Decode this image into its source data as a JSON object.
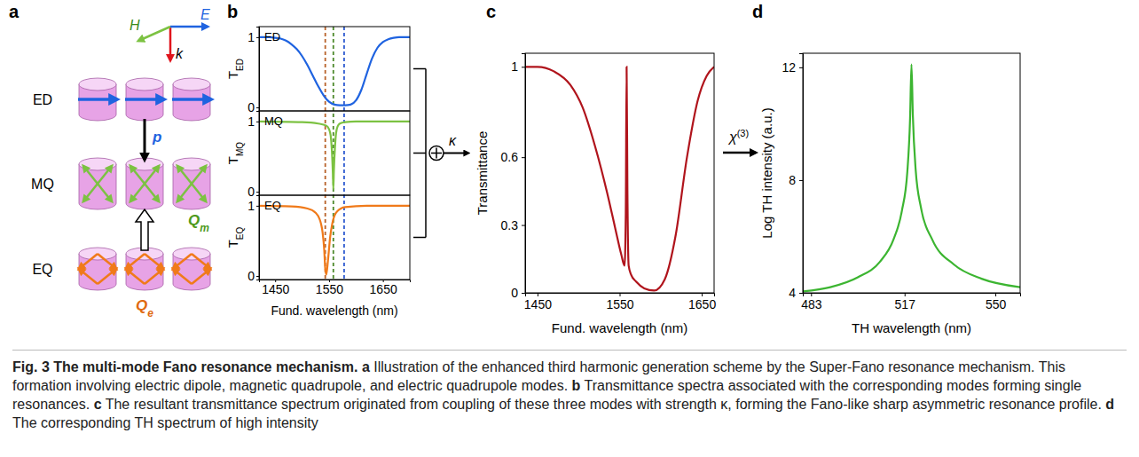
{
  "panel_labels": [
    "a",
    "b",
    "c",
    "d"
  ],
  "diagram": {
    "field_labels": [
      "H",
      "E",
      "k"
    ],
    "rows": [
      {
        "label": "ED",
        "moment": "p"
      },
      {
        "label": "MQ",
        "moment": "Q",
        "moment_sub": "m"
      },
      {
        "label": "EQ",
        "moment": "Q",
        "moment_sub": "e"
      }
    ]
  },
  "connectors": {
    "coupling": "κ",
    "process": {
      "symbol": "χ",
      "sup": "(3)"
    }
  },
  "chart_data": [
    {
      "type": "line",
      "xlabel": "Fund. wavelength (nm)",
      "xlim": [
        1420,
        1700
      ],
      "xticks": [
        1450,
        1550,
        1650
      ],
      "ylim": [
        -0.05,
        1.15
      ],
      "yticks": [
        0,
        1
      ],
      "reference_lines": [
        {
          "value": 1543,
          "color": "#b8622a"
        },
        {
          "value": 1558,
          "color": "#4e8a2c"
        },
        {
          "value": 1578,
          "color": "#2e5bd0"
        }
      ],
      "series": [
        {
          "name": "ED",
          "ylabel": "T",
          "ylabel_sub": "ED",
          "color": "#1f63e0",
          "x": [
            1420,
            1430,
            1440,
            1450,
            1460,
            1470,
            1480,
            1490,
            1500,
            1510,
            1520,
            1530,
            1540,
            1550,
            1560,
            1570,
            1580,
            1590,
            1600,
            1610,
            1620,
            1630,
            1640,
            1650,
            1660,
            1670,
            1680,
            1690,
            1700
          ],
          "values": [
            1,
            1,
            1,
            0.99,
            0.98,
            0.95,
            0.9,
            0.83,
            0.73,
            0.6,
            0.45,
            0.3,
            0.17,
            0.08,
            0.04,
            0.03,
            0.03,
            0.04,
            0.1,
            0.25,
            0.48,
            0.7,
            0.85,
            0.93,
            0.97,
            0.99,
            1,
            1,
            1
          ]
        },
        {
          "name": "MQ",
          "ylabel": "T",
          "ylabel_sub": "MQ",
          "color": "#7cc242",
          "x": [
            1420,
            1500,
            1530,
            1545,
            1550,
            1553,
            1555,
            1557,
            1558,
            1559,
            1561,
            1563,
            1566,
            1570,
            1580,
            1600,
            1650,
            1700
          ],
          "values": [
            1,
            0.99,
            0.97,
            0.94,
            0.89,
            0.8,
            0.62,
            0.28,
            0.04,
            0.3,
            0.63,
            0.83,
            0.93,
            0.97,
            0.99,
            1,
            1,
            1
          ]
        },
        {
          "name": "EQ",
          "ylabel": "T",
          "ylabel_sub": "EQ",
          "color": "#f07a1a",
          "x": [
            1420,
            1480,
            1510,
            1525,
            1533,
            1538,
            1541,
            1543,
            1545,
            1548,
            1552,
            1557,
            1565,
            1580,
            1620,
            1700
          ],
          "values": [
            1,
            0.99,
            0.96,
            0.9,
            0.8,
            0.62,
            0.38,
            0.1,
            0.02,
            0.22,
            0.55,
            0.78,
            0.92,
            0.98,
            1,
            1
          ]
        }
      ]
    },
    {
      "type": "line",
      "xlabel": "Fund. wavelength (nm)",
      "ylabel": "Transmittance",
      "xlim": [
        1435,
        1665
      ],
      "xticks": [
        1450,
        1550,
        1650
      ],
      "ylim": [
        0,
        1.06
      ],
      "yticks": [
        0,
        0.3,
        0.6,
        1
      ],
      "color": "#b0141c",
      "x": [
        1435,
        1450,
        1470,
        1490,
        1505,
        1520,
        1535,
        1545,
        1552,
        1556,
        1557.5,
        1558.5,
        1559.5,
        1561,
        1564,
        1570,
        1580,
        1592,
        1605,
        1618,
        1632,
        1645,
        1656,
        1665
      ],
      "values": [
        1,
        1,
        0.98,
        0.92,
        0.82,
        0.65,
        0.44,
        0.28,
        0.17,
        0.12,
        0.35,
        1,
        0.45,
        0.12,
        0.08,
        0.05,
        0.02,
        0.01,
        0.06,
        0.25,
        0.6,
        0.85,
        0.96,
        1
      ]
    },
    {
      "type": "line",
      "xlabel": "TH wavelength (nm)",
      "ylabel": "Log TH intensity (a.u.)",
      "xlim": [
        480,
        559
      ],
      "xticks": [
        483,
        517,
        550
      ],
      "ylim": [
        4,
        12.5
      ],
      "yticks": [
        4,
        8,
        12
      ],
      "color": "#3cb531",
      "x": [
        480,
        490,
        500,
        508,
        513,
        516,
        518,
        519,
        519.5,
        520,
        521,
        523,
        527,
        535,
        545,
        559
      ],
      "values": [
        4.05,
        4.2,
        4.55,
        5.1,
        5.9,
        6.9,
        8.3,
        10.2,
        12.1,
        10.3,
        8.4,
        7,
        5.9,
        5,
        4.5,
        4.2
      ]
    }
  ],
  "caption": {
    "title": "Fig. 3 The multi-mode Fano resonance mechanism.",
    "items": [
      {
        "label": "a",
        "text": "Illustration of the enhanced third harmonic generation scheme by the Super-Fano resonance mechanism. This formation involving electric dipole, magnetic quadrupole, and electric quadrupole modes."
      },
      {
        "label": "b",
        "text": "Transmittance spectra associated with the corresponding modes forming single resonances."
      },
      {
        "label": "c",
        "text": "The resultant transmittance spectrum originated from coupling of these three modes with strength κ, forming the Fano-like sharp asymmetric resonance profile."
      },
      {
        "label": "d",
        "text": "The corresponding TH spectrum of high intensity"
      }
    ]
  }
}
